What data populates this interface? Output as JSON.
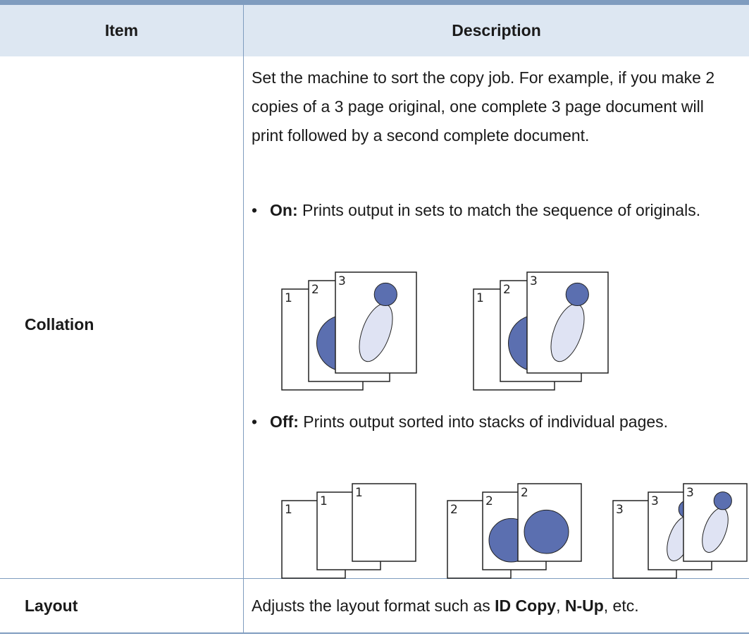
{
  "table": {
    "headers": [
      "Item",
      "Description"
    ],
    "rows": [
      {
        "item": "Collation",
        "description": {
          "intro": "Set the machine to sort the copy job. For example, if you make 2 copies of a 3 page original, one complete 3 page document will print followed by a second complete document.",
          "bullets": [
            {
              "label": "On:",
              "text": "Prints output in sets to match the sequence of originals."
            },
            {
              "label": "Off:",
              "text": "Prints output sorted into stacks of individual pages."
            }
          ]
        }
      },
      {
        "item": "Layout",
        "description": {
          "segments": [
            {
              "text": "Adjusts the layout format such as ",
              "bold": false
            },
            {
              "text": "ID Copy",
              "bold": true
            },
            {
              "text": ", ",
              "bold": false
            },
            {
              "text": "N-Up",
              "bold": true
            },
            {
              "text": ", etc.",
              "bold": false
            }
          ]
        }
      }
    ]
  },
  "figures": {
    "on": [
      [
        "1",
        "2",
        "3"
      ],
      [
        "1",
        "2",
        "3"
      ]
    ],
    "off": [
      [
        "1",
        "1",
        "1"
      ],
      [
        "2",
        "2",
        "2"
      ],
      [
        "3",
        "3",
        "3"
      ]
    ]
  }
}
